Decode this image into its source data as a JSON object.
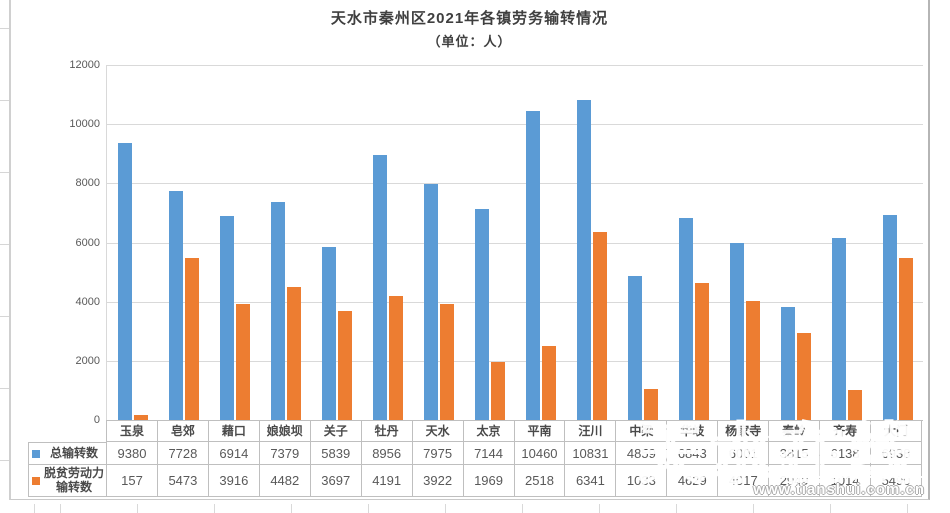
{
  "watermark": {
    "brand": "天水在线",
    "url": "www.tianshui.com.cn"
  },
  "chart_data": {
    "type": "bar",
    "title": "天水市秦州区2021年各镇劳务输转情况",
    "subtitle": "（单位：人）",
    "categories": [
      "玉泉",
      "皂郊",
      "藉口",
      "娘娘坝",
      "关子",
      "牡丹",
      "天水",
      "太京",
      "平南",
      "汪川",
      "中梁",
      "华岐",
      "杨家寺",
      "秦岭",
      "齐寿",
      "大门"
    ],
    "series": [
      {
        "name": "总输转数",
        "color": "#5b9bd5",
        "values": [
          9380,
          7728,
          6914,
          7379,
          5839,
          8956,
          7975,
          7144,
          10460,
          10831,
          4859,
          6843,
          6001,
          3815,
          6138,
          6938
        ]
      },
      {
        "name": "脱贫劳动力输转数",
        "color": "#ed7d31",
        "values": [
          157,
          5473,
          3916,
          4482,
          3697,
          4191,
          3922,
          1969,
          2518,
          6341,
          1033,
          4629,
          4017,
          2949,
          1014,
          5490
        ]
      }
    ],
    "xlabel": "",
    "ylabel": "",
    "ylim": [
      0,
      12000
    ],
    "ytick_step": 2000,
    "grid": "horizontal",
    "legend_position": "left-of-data-table",
    "data_table": true
  }
}
